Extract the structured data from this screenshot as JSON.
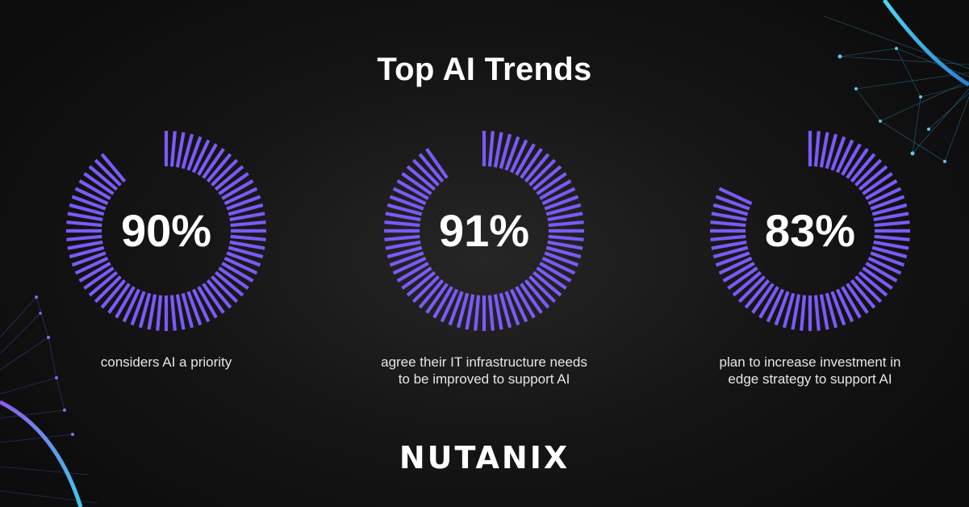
{
  "title": "Top AI Trends",
  "accent_color": "#7a5af8",
  "chart_data": [
    {
      "type": "radial-progress",
      "value": 90,
      "label": "90%",
      "caption": "considers AI a priority"
    },
    {
      "type": "radial-progress",
      "value": 91,
      "label": "91%",
      "caption": "agree their IT infrastructure needs\nto be improved to support AI"
    },
    {
      "type": "radial-progress",
      "value": 83,
      "label": "83%",
      "caption": "plan to increase investment in\nedge strategy to support AI"
    }
  ],
  "logo_text": "NUTANIX"
}
